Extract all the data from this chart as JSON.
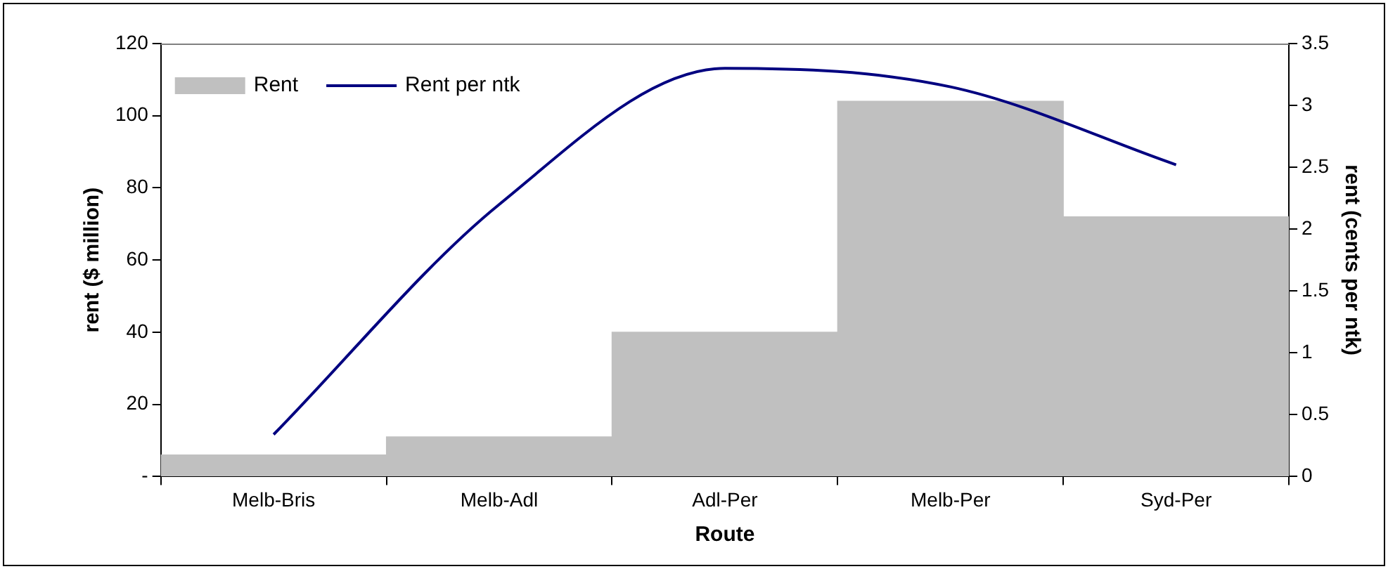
{
  "chart_data": {
    "type": "bar",
    "xlabel": "Route",
    "ylabel": "rent ($ million)",
    "y2label": "rent (cents per ntk)",
    "categories": [
      "Melb-Bris",
      "Melb-Adl",
      "Adl-Per",
      "Melb-Per",
      "Syd-Per"
    ],
    "series": [
      {
        "name": "Rent",
        "color": "#c0c0c0",
        "values": [
          6,
          11,
          40,
          104,
          72
        ]
      },
      {
        "name": "Rent per ntk",
        "type": "line",
        "axis": "y2",
        "color": "#000080",
        "values": [
          0.34,
          2.2,
          3.3,
          3.15,
          2.52
        ]
      }
    ],
    "ylim": [
      0,
      120
    ],
    "yticks": [
      {
        "value": 0,
        "label": "-"
      },
      20,
      40,
      60,
      80,
      100,
      120
    ],
    "y2lim": [
      0,
      3.5
    ],
    "y2ticks": [
      0,
      0.5,
      1,
      1.5,
      2,
      2.5,
      3,
      3.5
    ],
    "legend": "top left",
    "grid": false,
    "marker": "none"
  }
}
